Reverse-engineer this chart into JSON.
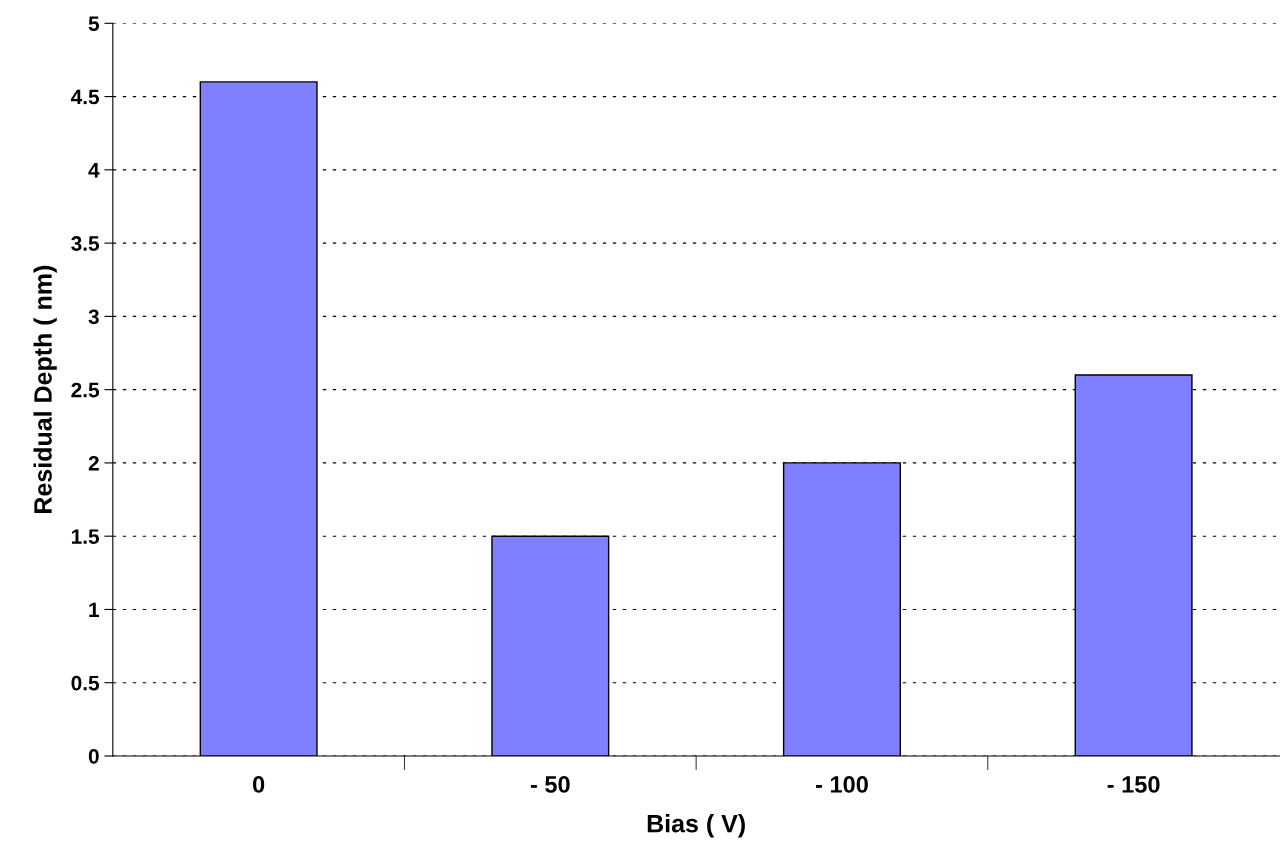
{
  "chart_data": {
    "type": "bar",
    "xlabel": "Bias ( V)",
    "ylabel": "Residual Depth ( nm)",
    "categories": [
      "0",
      "- 50",
      "- 100",
      "- 150"
    ],
    "values": [
      4.6,
      1.5,
      2.0,
      2.6
    ],
    "color": "#8080ff",
    "ylim": [
      0,
      5
    ],
    "yticks": [
      0,
      0.5,
      1,
      1.5,
      2,
      2.5,
      3,
      3.5,
      4,
      4.5,
      5
    ],
    "grid": "y"
  }
}
